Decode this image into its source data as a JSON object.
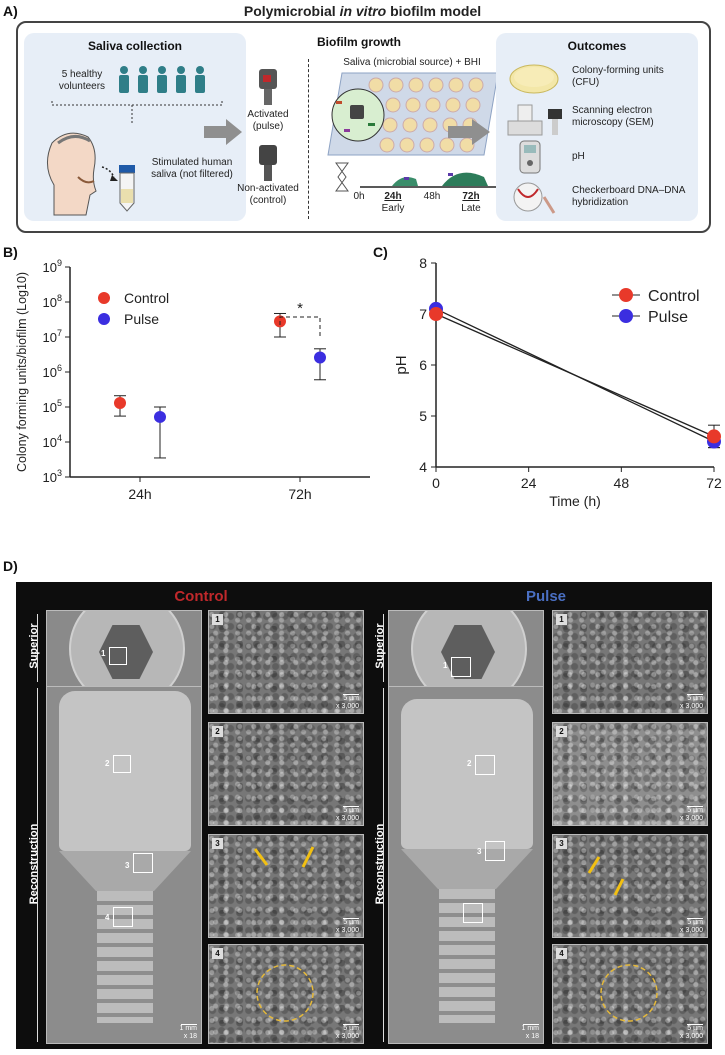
{
  "panelA": {
    "letter": "A)",
    "title_pre": "Polymicrobial ",
    "title_italic": "in vitro",
    "title_post": " biofilm model",
    "saliva": {
      "title": "Saliva collection",
      "volunteers": "5 healthy volunteers",
      "stimulated": "Stimulated human saliva (not filtered)"
    },
    "growth": {
      "title": "Biofilm growth",
      "medium": "Saliva (microbial source) + BHI",
      "activated": "Activated (pulse)",
      "nonactivated": "Non-activated (control)",
      "timeline": [
        "0h",
        "24h",
        "48h",
        "72h"
      ],
      "early": "Early",
      "late": "Late"
    },
    "outcomes": {
      "title": "Outcomes",
      "items": [
        {
          "label": "Colony-forming units (CFU)",
          "icon": "petri-dish-icon"
        },
        {
          "label": "Scanning electron microscopy (SEM)",
          "icon": "microscope-icon"
        },
        {
          "label": "pH",
          "icon": "ph-meter-icon"
        },
        {
          "label": "Checkerboard DNA–DNA hybridization",
          "icon": "dna-icon"
        }
      ]
    }
  },
  "chart_data": [
    {
      "panel": "B)",
      "type": "scatter",
      "ylabel": "Colony forming units/biofilm (Log10)",
      "y_scale": "log",
      "ylim": [
        1000,
        1000000000
      ],
      "y_ticks": [
        "10^3",
        "10^4",
        "10^5",
        "10^6",
        "10^7",
        "10^8",
        "10^9"
      ],
      "categories": [
        "24h",
        "72h"
      ],
      "legend": [
        "Control",
        "Pulse"
      ],
      "legend_position": "top-left",
      "significance": "*",
      "series": [
        {
          "name": "Control",
          "color": "#e8392a",
          "values": [
            130000,
            28000000
          ],
          "err_low": [
            55000,
            10000000
          ],
          "err_high": [
            210000,
            47000000
          ]
        },
        {
          "name": "Pulse",
          "color": "#3b2ee0",
          "values": [
            52000,
            2600000
          ],
          "err_low": [
            3500,
            600000
          ],
          "err_high": [
            100000,
            4600000
          ]
        }
      ]
    },
    {
      "panel": "C)",
      "type": "line",
      "xlabel": "Time (h)",
      "ylabel": "pH",
      "xlim": [
        0,
        72
      ],
      "ylim": [
        4,
        8
      ],
      "x_ticks": [
        0,
        24,
        48,
        72
      ],
      "y_ticks": [
        4,
        5,
        6,
        7,
        8
      ],
      "legend": [
        "Control",
        "Pulse"
      ],
      "legend_position": "top-right",
      "series": [
        {
          "name": "Control",
          "color": "#e8392a",
          "x": [
            0,
            72
          ],
          "values": [
            7.0,
            4.6
          ],
          "err": [
            0.02,
            0.22
          ]
        },
        {
          "name": "Pulse",
          "color": "#3b2ee0",
          "x": [
            0,
            72
          ],
          "values": [
            7.1,
            4.5
          ],
          "err": [
            0.02,
            0.12
          ]
        }
      ]
    }
  ],
  "panelD": {
    "letter": "D)",
    "control_title": "Control",
    "pulse_title": "Pulse",
    "control_color": "#c0282b",
    "pulse_color": "#4a6fc2",
    "superior": "Superior",
    "reconstruction": "Reconstruction",
    "scale_mm": "1 mm",
    "mag_mm": "x 18",
    "scale_um": "5 µm",
    "mag_um": "x 3,000",
    "tags": [
      "1",
      "2",
      "3",
      "4"
    ]
  }
}
